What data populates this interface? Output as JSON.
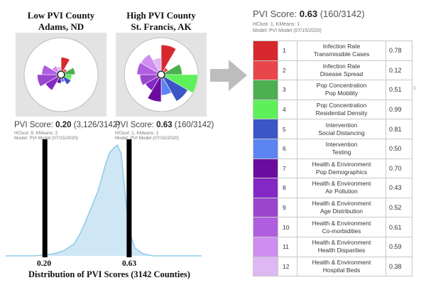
{
  "colors": {
    "panel_bg": "#e3e3e3",
    "dist_fill": "#cfe6f5",
    "dist_line": "#8ccbea",
    "arrow": "#bdbdbd"
  },
  "low": {
    "title_line1": "Low PVI County",
    "title_line2": "Adams, ND",
    "score_label": "PVI Score:",
    "score_value": "0.20",
    "score_rank": "(3,126/3142)",
    "hclust": "HClust: 9, KMeans: 2",
    "model": "Model: PVI Model (07/15/2020)",
    "slices": [
      0.4,
      0.08,
      0.3,
      0.2,
      0.22,
      0.1,
      0.14,
      0.42,
      0.6,
      0.46,
      0.18,
      0.12
    ]
  },
  "high": {
    "title_line1": "High PVI County",
    "title_line2": "St. Francis, AK",
    "score_label": "PVI Score:",
    "score_value": "0.63",
    "score_rank": "(160/3142)",
    "hclust": "HClust: 1, KMeans: 1",
    "model": "Model: PVI Model (07/15/2020)",
    "slices": [
      0.78,
      0.12,
      0.51,
      0.99,
      0.81,
      0.5,
      0.7,
      0.43,
      0.52,
      0.61,
      0.59,
      0.38
    ]
  },
  "distribution": {
    "caption": "Distribution of PVI Scores (3142 Counties)",
    "tick_low": "0.20",
    "tick_high": "0.63",
    "density_x": [
      0.0,
      0.05,
      0.1,
      0.15,
      0.2,
      0.25,
      0.3,
      0.35,
      0.38,
      0.41,
      0.44,
      0.47,
      0.49,
      0.51,
      0.53,
      0.55,
      0.57,
      0.59,
      0.61,
      0.63,
      0.66,
      0.7,
      0.75,
      0.8,
      0.85,
      0.9,
      0.95,
      1.0
    ],
    "density_y": [
      0.0,
      0.0,
      0.0,
      0.0,
      0.01,
      0.02,
      0.05,
      0.11,
      0.2,
      0.32,
      0.45,
      0.58,
      0.7,
      0.83,
      0.93,
      0.97,
      1.0,
      0.92,
      0.55,
      0.22,
      0.07,
      0.02,
      0.0,
      0.0,
      0.0,
      0.0,
      0.0,
      0.0
    ]
  },
  "right": {
    "score_label": "PVI Score:",
    "score_value": "0.63",
    "score_rank": "(160/3142)",
    "hclust": "HClust: 1, KMeans: 1",
    "model": "Model: PVI Model (07/15/2020)",
    "edge_mark": "c"
  },
  "legend": [
    {
      "num": "1",
      "line1": "Infection Rate",
      "line2": "Transmissible Cases",
      "value": "0.78",
      "color": "#d7282d"
    },
    {
      "num": "2",
      "line1": "Infection Rate",
      "line2": "Disease Spread",
      "value": "0.12",
      "color": "#e9464b"
    },
    {
      "num": "3",
      "line1": "Pop Concentration",
      "line2": "Pop Mobility",
      "value": "0.51",
      "color": "#4caf50"
    },
    {
      "num": "4",
      "line1": "Pop Concentration",
      "line2": "Residential Density",
      "value": "0.99",
      "color": "#5ef05a"
    },
    {
      "num": "5",
      "line1": "Intervention",
      "line2": "Social Distancing",
      "value": "0.81",
      "color": "#3c55c7"
    },
    {
      "num": "6",
      "line1": "Intervention",
      "line2": "Testing",
      "value": "0.50",
      "color": "#5c84f2"
    },
    {
      "num": "7",
      "line1": "Health & Environment",
      "line2": "Pop Demographics",
      "value": "0.70",
      "color": "#6a0d9e"
    },
    {
      "num": "8",
      "line1": "Health & Environment",
      "line2": "Air Pollution",
      "value": "0.43",
      "color": "#8427c4"
    },
    {
      "num": "9",
      "line1": "Health & Environment",
      "line2": "Age Distribution",
      "value": "0.52",
      "color": "#9a46cc"
    },
    {
      "num": "10",
      "line1": "Health & Environment",
      "line2": "Co-morbidities",
      "value": "0.61",
      "color": "#b05ee0"
    },
    {
      "num": "11",
      "line1": "Health & Environment",
      "line2": "Health Disparities",
      "value": "0.59",
      "color": "#cd8ef0"
    },
    {
      "num": "12",
      "line1": "Health & Environment",
      "line2": "Hospital Beds",
      "value": "0.38",
      "color": "#ddb8f2"
    }
  ]
}
